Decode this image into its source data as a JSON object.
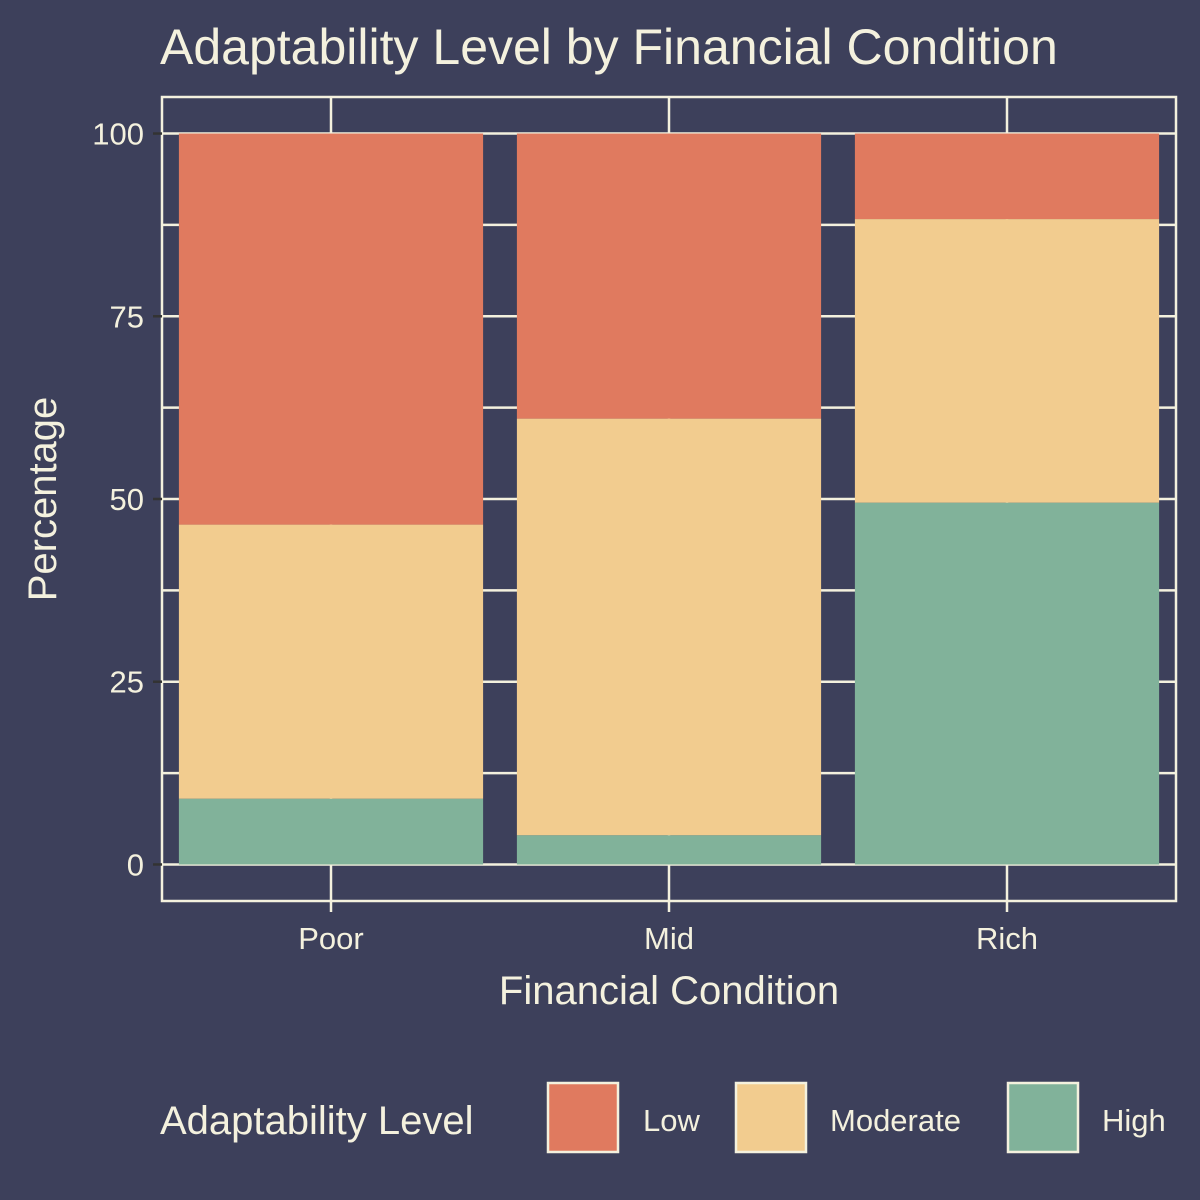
{
  "chart_data": {
    "type": "bar",
    "stacked": true,
    "title": "Adaptability Level by Financial Condition",
    "xlabel": "Financial Condition",
    "ylabel": "Percentage",
    "categories": [
      "Poor",
      "Mid",
      "Rich"
    ],
    "ylim": [
      -5,
      105
    ],
    "yticks": [
      0,
      25,
      50,
      75,
      100
    ],
    "grid": true,
    "legend": {
      "title": "Adaptability Level",
      "position": "bottom"
    },
    "series": [
      {
        "name": "High",
        "color": "#81b29a",
        "values": [
          9,
          4,
          49.5
        ]
      },
      {
        "name": "Moderate",
        "color": "#f2cc8f",
        "values": [
          37.5,
          57,
          38.8
        ]
      },
      {
        "name": "Low",
        "color": "#e07a5f",
        "values": [
          53.5,
          39,
          11.7
        ]
      }
    ],
    "legend_order": [
      "Low",
      "Moderate",
      "High"
    ]
  },
  "colors": {
    "background": "#3d405b",
    "foreground": "#f4f1de"
  }
}
